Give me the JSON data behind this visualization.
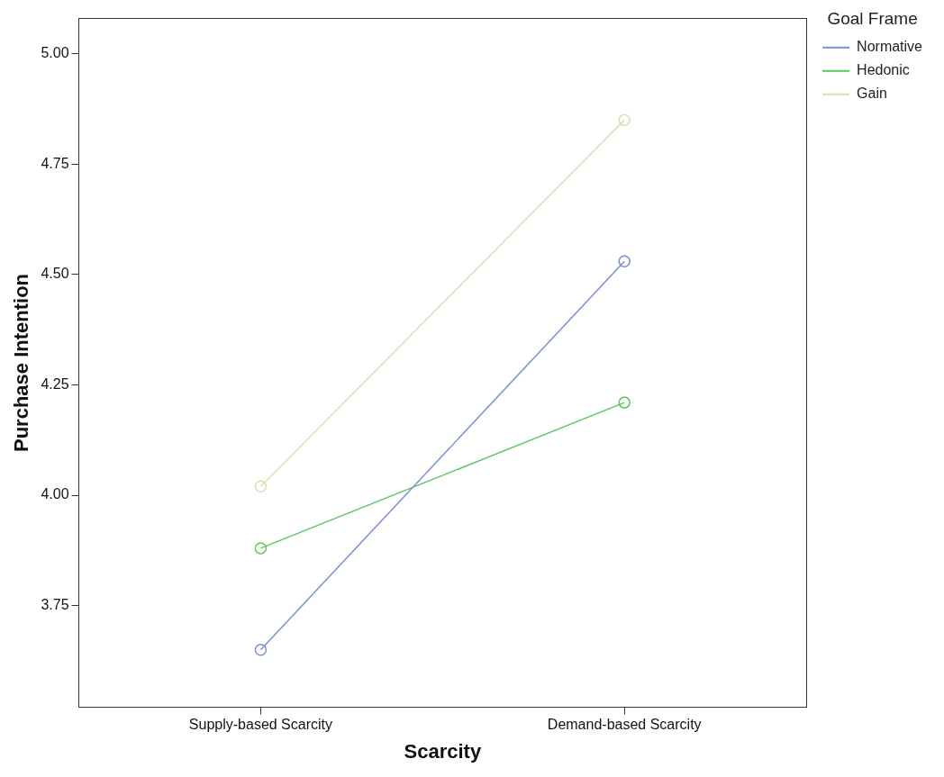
{
  "chart_data": {
    "type": "line",
    "xlabel": "Scarcity",
    "ylabel": "Purchase Intention",
    "legend_title": "Goal Frame",
    "categories": [
      "Supply-based Scarcity",
      "Demand-based Scarcity"
    ],
    "series": [
      {
        "name": "Normative",
        "color": "#7b8fd4",
        "values": [
          3.65,
          4.53
        ]
      },
      {
        "name": "Hedonic",
        "color": "#5cc85c",
        "values": [
          3.88,
          4.21
        ]
      },
      {
        "name": "Gain",
        "color": "#e0dcb0",
        "values": [
          4.02,
          4.85
        ]
      }
    ],
    "ylim": [
      3.52,
      5.08
    ],
    "yticks": [
      {
        "value": 3.75,
        "label": "3.75"
      },
      {
        "value": 4,
        "label": "4.00"
      },
      {
        "value": 4.25,
        "label": "4.25"
      },
      {
        "value": 4.5,
        "label": "4.50"
      },
      {
        "value": 4.75,
        "label": "4.75"
      },
      {
        "value": 5,
        "label": "5.00"
      }
    ],
    "grid": false,
    "legend": "top right",
    "marker": "circle",
    "line_style": "solid"
  }
}
